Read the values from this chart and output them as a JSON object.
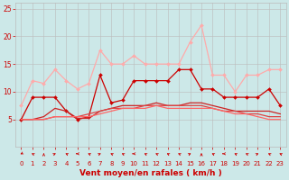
{
  "x": [
    0,
    1,
    2,
    3,
    4,
    5,
    6,
    7,
    8,
    9,
    10,
    11,
    12,
    13,
    14,
    15,
    16,
    17,
    18,
    19,
    20,
    21,
    22,
    23
  ],
  "series": [
    {
      "color": "#ffaaaa",
      "values": [
        7.5,
        12,
        11.5,
        14,
        12,
        10.5,
        11.5,
        17.5,
        15,
        15,
        16.5,
        15,
        15,
        15,
        15,
        19,
        22,
        13,
        13,
        10,
        13,
        13,
        14,
        14
      ],
      "marker": "D",
      "markersize": 2.0,
      "linewidth": 0.9
    },
    {
      "color": "#cc0000",
      "values": [
        5,
        9,
        9,
        9,
        6.5,
        5,
        5.5,
        13,
        8,
        8.5,
        12,
        12,
        12,
        12,
        14,
        14,
        10.5,
        10.5,
        9,
        9,
        9,
        9,
        10.5,
        7.5
      ],
      "marker": "D",
      "markersize": 2.0,
      "linewidth": 0.9
    },
    {
      "color": "#cc2222",
      "values": [
        5,
        5,
        5.5,
        7,
        6.5,
        5.2,
        5.2,
        6.5,
        7,
        7.5,
        7.5,
        7.5,
        8,
        7.5,
        7.5,
        8,
        8,
        7.5,
        7,
        6.5,
        6.5,
        6.5,
        6.5,
        6
      ],
      "marker": null,
      "markersize": 0,
      "linewidth": 0.9
    },
    {
      "color": "#dd4444",
      "values": [
        5,
        5,
        5,
        5.5,
        5.5,
        5.5,
        6,
        6.5,
        7,
        7,
        7,
        7.5,
        7.5,
        7.5,
        7.5,
        7.5,
        7.5,
        7,
        6.5,
        6.5,
        6,
        6,
        5.5,
        5.5
      ],
      "marker": null,
      "markersize": 0,
      "linewidth": 0.9
    },
    {
      "color": "#ff6666",
      "values": [
        5,
        5,
        5,
        5.5,
        5.5,
        5.5,
        5.5,
        6,
        6.5,
        7,
        7,
        7,
        7.5,
        7,
        7,
        7,
        7,
        7,
        6.5,
        6,
        6,
        5.5,
        5,
        5
      ],
      "marker": null,
      "markersize": 0,
      "linewidth": 0.9
    }
  ],
  "wind_directions": [
    225,
    315,
    0,
    45,
    315,
    270,
    315,
    45,
    315,
    315,
    270,
    315,
    315,
    315,
    315,
    45,
    0,
    315,
    270,
    315,
    315,
    45,
    315,
    315
  ],
  "xlabel": "Vent moyen/en rafales ( km/h )",
  "xlim": [
    -0.5,
    23.5
  ],
  "ylim": [
    0,
    26
  ],
  "yticks": [
    5,
    10,
    15,
    20,
    25
  ],
  "xticks": [
    0,
    1,
    2,
    3,
    4,
    5,
    6,
    7,
    8,
    9,
    10,
    11,
    12,
    13,
    14,
    15,
    16,
    17,
    18,
    19,
    20,
    21,
    22,
    23
  ],
  "background_color": "#cce8e8",
  "grid_color": "#bbbbbb",
  "tick_color": "#cc0000",
  "label_color": "#cc0000"
}
